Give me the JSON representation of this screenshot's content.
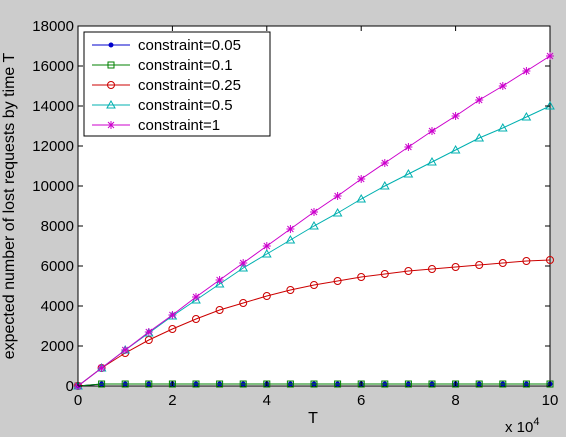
{
  "chart_data": {
    "type": "line",
    "title": "",
    "xlabel": "T",
    "ylabel": "expected number of lost requests by time T",
    "x_multiplier_label": "x 10",
    "x_multiplier_exponent": "4",
    "x_scale": 10000,
    "xlim": [
      0,
      100000
    ],
    "ylim": [
      0,
      18000
    ],
    "x_ticks": [
      0,
      20000,
      40000,
      60000,
      80000,
      100000
    ],
    "x_tick_labels": [
      "0",
      "2",
      "4",
      "6",
      "8",
      "10"
    ],
    "y_ticks": [
      0,
      2000,
      4000,
      6000,
      8000,
      10000,
      12000,
      14000,
      16000,
      18000
    ],
    "y_tick_labels": [
      "0",
      "2000",
      "4000",
      "6000",
      "8000",
      "10000",
      "12000",
      "14000",
      "16000",
      "18000"
    ],
    "grid": false,
    "legend_position": "top-left",
    "x": [
      0,
      5000,
      10000,
      15000,
      20000,
      25000,
      30000,
      35000,
      40000,
      45000,
      50000,
      55000,
      60000,
      65000,
      70000,
      75000,
      80000,
      85000,
      90000,
      95000,
      100000
    ],
    "series": [
      {
        "name": "constraint=0.05",
        "color": "#0000cc",
        "marker": "dot",
        "values": [
          0,
          100,
          100,
          100,
          100,
          100,
          100,
          100,
          100,
          100,
          100,
          100,
          100,
          100,
          100,
          100,
          100,
          100,
          100,
          100,
          100
        ]
      },
      {
        "name": "constraint=0.1",
        "color": "#008000",
        "marker": "square",
        "values": [
          0,
          100,
          100,
          100,
          100,
          100,
          100,
          100,
          100,
          100,
          100,
          100,
          100,
          100,
          100,
          100,
          100,
          100,
          100,
          100,
          100
        ]
      },
      {
        "name": "constraint=0.25",
        "color": "#cc0000",
        "marker": "circle",
        "values": [
          0,
          900,
          1650,
          2300,
          2850,
          3350,
          3800,
          4150,
          4500,
          4800,
          5050,
          5250,
          5450,
          5600,
          5750,
          5850,
          5950,
          6050,
          6150,
          6250,
          6300
        ]
      },
      {
        "name": "constraint=0.5",
        "color": "#00b0b0",
        "marker": "triangle",
        "values": [
          0,
          900,
          1800,
          2650,
          3500,
          4300,
          5100,
          5900,
          6600,
          7300,
          8000,
          8650,
          9350,
          10000,
          10600,
          11200,
          11800,
          12400,
          12900,
          13450,
          14000
        ]
      },
      {
        "name": "constraint=1",
        "color": "#cc00cc",
        "marker": "star",
        "values": [
          0,
          900,
          1800,
          2700,
          3550,
          4450,
          5300,
          6150,
          7000,
          7850,
          8700,
          9500,
          10350,
          11150,
          11950,
          12750,
          13500,
          14300,
          15000,
          15750,
          16500
        ]
      }
    ]
  }
}
